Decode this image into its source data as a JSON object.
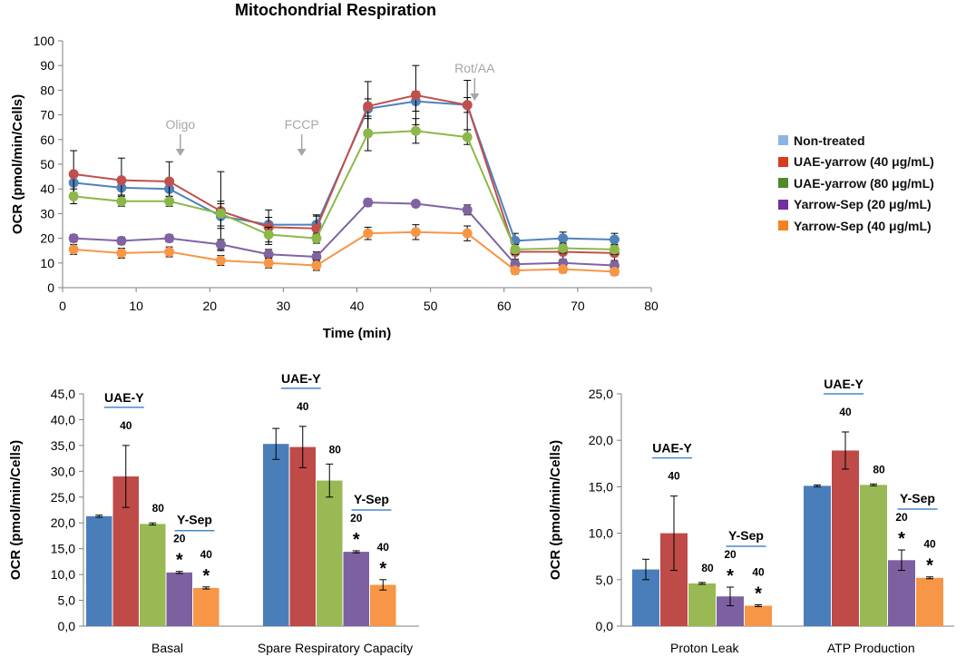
{
  "colors": {
    "nontreated_line": "#4F81BD",
    "uae40_line": "#C0504D",
    "uae80_line": "#8CB84A",
    "ysep20_line": "#8064A2",
    "ysep40_line": "#F79646",
    "nontreated_swatch": "#8EB4E3",
    "uae40_swatch": "#D63C1E",
    "uae80_swatch": "#4E8A2C",
    "ysep20_swatch": "#7030A0",
    "ysep40_swatch": "#F58220",
    "nontreated_bar": "#4A7EBB",
    "uae40_bar": "#BE4B48",
    "uae80_bar": "#98B954",
    "ysep20_bar": "#7D60A0",
    "ysep40_bar": "#F79646",
    "injection": "#A6A6A6",
    "group_line": "#4A86C8"
  },
  "legend": {
    "items": [
      {
        "label": "Non-treated",
        "color": "#8EB4E3"
      },
      {
        "label": "UAE-yarrow (40 μg/mL)",
        "color": "#D63C1E"
      },
      {
        "label": "UAE-yarrow (80 μg/mL)",
        "color": "#4E8A2C"
      },
      {
        "label": "Yarrow-Sep (20 μg/mL)",
        "color": "#7030A0"
      },
      {
        "label": "Yarrow-Sep (40 μg/mL)",
        "color": "#F58220"
      }
    ]
  },
  "chart_data": [
    {
      "type": "line",
      "title": "Mitochondrial Respiration",
      "xlabel": "Time (min)",
      "ylabel": "OCR (pmol/min/Cells)",
      "xlim": [
        0,
        80
      ],
      "ylim": [
        0,
        100
      ],
      "xticks": [
        "0",
        "10",
        "20",
        "30",
        "40",
        "50",
        "60",
        "70",
        "80"
      ],
      "yticks": [
        "0",
        "10",
        "20",
        "30",
        "40",
        "50",
        "60",
        "70",
        "80",
        "90",
        "100"
      ],
      "x": [
        1.5,
        8,
        14.5,
        21.5,
        28,
        34.5,
        41.5,
        48,
        55,
        61.5,
        68,
        75
      ],
      "annotations": [
        {
          "label": "Oligo",
          "x": 16
        },
        {
          "label": "FCCP",
          "x": 32.5
        },
        {
          "label": "Rot/AA",
          "x": 56
        }
      ],
      "series": [
        {
          "name": "Non-treated",
          "values": [
            42.5,
            40.5,
            40,
            29,
            25.5,
            25.5,
            72.5,
            75.5,
            74,
            19,
            20,
            19.5
          ],
          "errors": [
            4,
            3,
            3,
            5,
            3,
            4,
            4,
            4,
            3,
            3,
            2.5,
            2.5
          ]
        },
        {
          "name": "UAE-yarrow (40 μg/mL)",
          "values": [
            46,
            43.5,
            43,
            31,
            24.5,
            24,
            73.5,
            78,
            74,
            14.5,
            14.5,
            14
          ],
          "errors": [
            9.5,
            9,
            8,
            16,
            7,
            5,
            10,
            12,
            10,
            3,
            3,
            3
          ]
        },
        {
          "name": "UAE-yarrow (80 μg/mL)",
          "values": [
            37,
            35,
            35,
            30,
            21.5,
            20,
            62.5,
            63.5,
            61,
            15.5,
            16,
            15.5
          ],
          "errors": [
            3,
            2,
            2,
            5,
            3,
            2,
            7,
            5,
            3,
            2,
            2,
            2
          ]
        },
        {
          "name": "Yarrow-Sep (20 μg/mL)",
          "values": [
            20,
            19,
            20,
            17.5,
            13.5,
            12.5,
            34.5,
            34,
            31.5,
            9.5,
            10,
            9
          ],
          "errors": [
            1.5,
            1.5,
            1.5,
            2,
            2,
            2,
            1.5,
            1,
            2,
            1.5,
            1.5,
            1.5
          ]
        },
        {
          "name": "Yarrow-Sep (40 μg/mL)",
          "values": [
            15.5,
            14,
            14.5,
            11,
            10,
            9,
            22,
            22.5,
            22,
            7,
            7.5,
            6.5
          ],
          "errors": [
            2,
            2,
            2,
            2,
            2,
            2,
            2.5,
            3,
            3,
            1.5,
            1.5,
            1.5
          ]
        }
      ]
    },
    {
      "type": "bar",
      "ylabel": "OCR (pmol/min/Cells)",
      "ylim": [
        0,
        45
      ],
      "yticks": [
        "0,0",
        "5,0",
        "10,0",
        "15,0",
        "20,0",
        "25,0",
        "30,0",
        "35,0",
        "40,0",
        "45,0"
      ],
      "categories": [
        "Basal",
        "Spare Respiratory Capacity"
      ],
      "series": [
        {
          "name": "Non-treated",
          "values": [
            21.3,
            35.3
          ],
          "errors": [
            0.2,
            3.0
          ]
        },
        {
          "name": "UAE-yarrow (40 μg/mL)",
          "values": [
            29.0,
            34.7
          ],
          "errors": [
            6.0,
            4.0
          ]
        },
        {
          "name": "UAE-yarrow (80 μg/mL)",
          "values": [
            19.8,
            28.2
          ],
          "errors": [
            0.2,
            3.2
          ]
        },
        {
          "name": "Yarrow-Sep (20 μg/mL)",
          "values": [
            10.4,
            14.4
          ],
          "errors": [
            0.2,
            0.2
          ]
        },
        {
          "name": "Yarrow-Sep (40 μg/mL)",
          "values": [
            7.4,
            8.0
          ],
          "errors": [
            0.2,
            1.0
          ]
        }
      ],
      "annotations": {
        "group_uae": "UAE-Y",
        "group_ysep": "Y-Sep",
        "dose_40": "40",
        "dose_80": "80",
        "dose_20": "20",
        "sig": "*"
      }
    },
    {
      "type": "bar",
      "ylabel": "OCR (pmol/min/Cells)",
      "ylim": [
        0,
        25
      ],
      "yticks": [
        "0,0",
        "5,0",
        "10,0",
        "15,0",
        "20,0",
        "25,0"
      ],
      "categories": [
        "Proton Leak",
        "ATP Production"
      ],
      "series": [
        {
          "name": "Non-treated",
          "values": [
            6.1,
            15.1
          ],
          "errors": [
            1.1,
            0.1
          ]
        },
        {
          "name": "UAE-yarrow (40 μg/mL)",
          "values": [
            10.0,
            18.9
          ],
          "errors": [
            4.0,
            2.0
          ]
        },
        {
          "name": "UAE-yarrow (80 μg/mL)",
          "values": [
            4.6,
            15.2
          ],
          "errors": [
            0.1,
            0.1
          ]
        },
        {
          "name": "Yarrow-Sep (20 μg/mL)",
          "values": [
            3.2,
            7.1
          ],
          "errors": [
            1.0,
            1.1
          ]
        },
        {
          "name": "Yarrow-Sep (40 μg/mL)",
          "values": [
            2.2,
            5.2
          ],
          "errors": [
            0.1,
            0.1
          ]
        }
      ],
      "annotations": {
        "group_uae": "UAE-Y",
        "group_ysep": "Y-Sep",
        "dose_40": "40",
        "dose_80": "80",
        "dose_20": "20",
        "sig": "*"
      }
    }
  ]
}
